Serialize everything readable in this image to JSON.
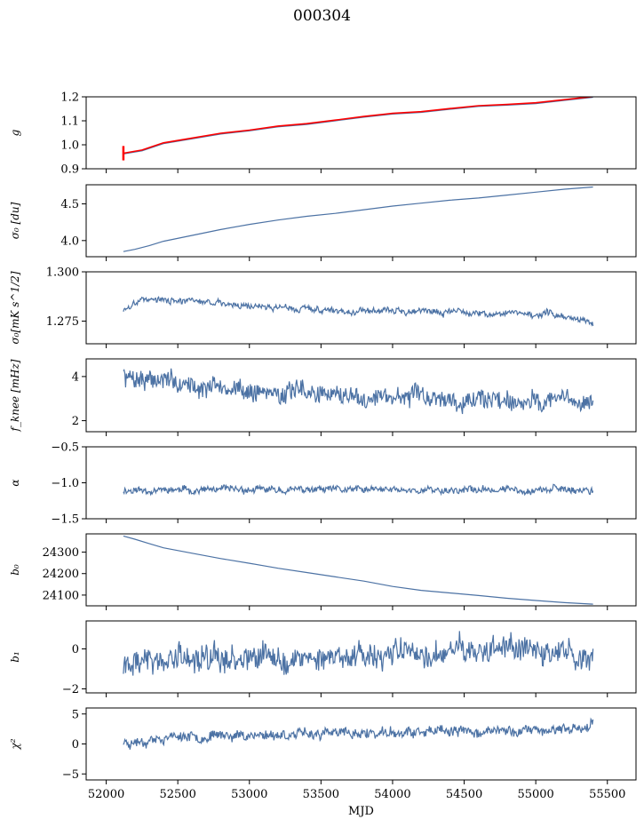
{
  "figure": {
    "title": "000304"
  },
  "colors": {
    "series": "#4c72a4",
    "overlay": "#ff0000",
    "axes": "#000000"
  },
  "chart_data": [
    {
      "type": "line",
      "panel": "g",
      "ylabel": "g",
      "ylim": [
        0.9,
        1.2
      ],
      "xlim": [
        51860,
        55700
      ],
      "yticks": [
        0.9,
        1.0,
        1.1,
        1.2
      ],
      "ytick_labels": [
        "0.9",
        "1.0",
        "1.1",
        "1.2"
      ],
      "series": [
        {
          "color": "#4c72a4",
          "kind": "line",
          "x": [
            52120,
            52250,
            52400,
            52600,
            52800,
            53000,
            53200,
            53400,
            53600,
            53800,
            54000,
            54200,
            54400,
            54600,
            54800,
            55000,
            55200,
            55400
          ],
          "y": [
            0.962,
            0.975,
            1.005,
            1.025,
            1.045,
            1.058,
            1.075,
            1.085,
            1.1,
            1.115,
            1.128,
            1.135,
            1.148,
            1.16,
            1.165,
            1.172,
            1.185,
            1.198
          ]
        },
        {
          "color": "#ff0000",
          "kind": "line",
          "x": [
            52120,
            52250,
            52400,
            52600,
            52800,
            53000,
            53200,
            53400,
            53600,
            53800,
            54000,
            54200,
            54400,
            54600,
            54800,
            55000,
            55200,
            55400
          ],
          "y": [
            0.965,
            0.978,
            1.008,
            1.028,
            1.048,
            1.061,
            1.078,
            1.088,
            1.103,
            1.118,
            1.131,
            1.138,
            1.151,
            1.163,
            1.168,
            1.175,
            1.188,
            1.201
          ]
        }
      ],
      "errorbar": {
        "x": 52120,
        "y": 0.965,
        "ymin": 0.935,
        "ymax": 0.995,
        "color": "#ff0000"
      }
    },
    {
      "type": "line",
      "panel": "sigma0",
      "ylabel": "σ₀ [du]",
      "ylim": [
        3.78,
        4.76
      ],
      "xlim": [
        51860,
        55700
      ],
      "yticks": [
        4.0,
        4.5
      ],
      "ytick_labels": [
        "4.0",
        "4.5"
      ],
      "series": [
        {
          "color": "#4c72a4",
          "kind": "line",
          "x": [
            52120,
            52200,
            52300,
            52400,
            52600,
            52800,
            53000,
            53200,
            53400,
            53600,
            53800,
            54000,
            54200,
            54400,
            54600,
            54800,
            55000,
            55200,
            55400
          ],
          "y": [
            3.85,
            3.88,
            3.93,
            3.99,
            4.07,
            4.15,
            4.22,
            4.28,
            4.33,
            4.37,
            4.42,
            4.47,
            4.51,
            4.55,
            4.58,
            4.62,
            4.66,
            4.7,
            4.73
          ]
        }
      ]
    },
    {
      "type": "line",
      "panel": "sigma0-mK",
      "ylabel": "σ₀[mK s^1/2]",
      "ylim": [
        1.2635,
        1.3
      ],
      "xlim": [
        51860,
        55700
      ],
      "yticks": [
        1.275,
        1.3
      ],
      "ytick_labels": [
        "1.275",
        "1.300"
      ],
      "noise": {
        "seed": 3,
        "amp": 0.0012,
        "walk": 0.0006
      },
      "series": [
        {
          "color": "#4c72a4",
          "kind": "noisy",
          "x": [
            52120,
            52250,
            52400,
            52700,
            53000,
            53300,
            53600,
            53900,
            54200,
            54500,
            54800,
            55100,
            55400
          ],
          "y": [
            1.28,
            1.287,
            1.2855,
            1.2845,
            1.283,
            1.2815,
            1.2805,
            1.2805,
            1.28,
            1.2795,
            1.279,
            1.2785,
            1.2745
          ]
        }
      ]
    },
    {
      "type": "line",
      "panel": "fknee",
      "ylabel": "f_knee [mHz]",
      "ylim": [
        1.5,
        4.8
      ],
      "xlim": [
        51860,
        55700
      ],
      "yticks": [
        2,
        4
      ],
      "ytick_labels": [
        "2",
        "4"
      ],
      "noise": {
        "seed": 7,
        "amp": 0.38,
        "walk": 0.12
      },
      "series": [
        {
          "color": "#4c72a4",
          "kind": "noisy",
          "x": [
            52120,
            52300,
            52600,
            53000,
            53400,
            53800,
            54200,
            54600,
            55000,
            55400
          ],
          "y": [
            4.0,
            3.9,
            3.6,
            3.35,
            3.25,
            3.15,
            3.05,
            3.0,
            2.95,
            2.9
          ]
        }
      ]
    },
    {
      "type": "line",
      "panel": "alpha",
      "ylabel": "α",
      "ylim": [
        -1.5,
        -0.5
      ],
      "xlim": [
        51860,
        55700
      ],
      "yticks": [
        -1.5,
        -1.0,
        -0.5
      ],
      "ytick_labels": [
        "−1.5",
        "−1.0",
        "−0.5"
      ],
      "noise": {
        "seed": 11,
        "amp": 0.04,
        "walk": 0.015
      },
      "series": [
        {
          "color": "#4c72a4",
          "kind": "noisy",
          "x": [
            52120,
            52700,
            53300,
            53900,
            54500,
            55100,
            55400
          ],
          "y": [
            -1.1,
            -1.1,
            -1.1,
            -1.1,
            -1.1,
            -1.09,
            -1.1
          ]
        }
      ]
    },
    {
      "type": "line",
      "panel": "b0",
      "ylabel": "b₀",
      "ylim": [
        24050,
        24385
      ],
      "xlim": [
        51860,
        55700
      ],
      "yticks": [
        24100,
        24200,
        24300
      ],
      "ytick_labels": [
        "24100",
        "24200",
        "24300"
      ],
      "series": [
        {
          "color": "#4c72a4",
          "kind": "line",
          "x": [
            52120,
            52200,
            52300,
            52400,
            52600,
            52800,
            53000,
            53200,
            53400,
            53600,
            53800,
            54000,
            54200,
            54400,
            54600,
            54800,
            55000,
            55200,
            55400
          ],
          "y": [
            24375,
            24360,
            24340,
            24320,
            24295,
            24270,
            24248,
            24225,
            24205,
            24185,
            24165,
            24140,
            24122,
            24110,
            24098,
            24085,
            24075,
            24065,
            24058
          ]
        }
      ]
    },
    {
      "type": "line",
      "panel": "b1",
      "ylabel": "b₁",
      "ylim": [
        -2.2,
        1.4
      ],
      "xlim": [
        51860,
        55700
      ],
      "yticks": [
        -2,
        0
      ],
      "ytick_labels": [
        "−2",
        "0"
      ],
      "noise": {
        "seed": 19,
        "amp": 0.55,
        "walk": 0.2
      },
      "series": [
        {
          "color": "#4c72a4",
          "kind": "noisy",
          "x": [
            52120,
            52700,
            53300,
            53900,
            54500,
            55100,
            55400
          ],
          "y": [
            -0.6,
            -0.5,
            -0.4,
            -0.3,
            -0.2,
            -0.2,
            -0.3
          ]
        }
      ]
    },
    {
      "type": "line",
      "panel": "chi2",
      "ylabel": "χ²",
      "ylim": [
        -6,
        6
      ],
      "xlim": [
        51860,
        55700
      ],
      "yticks": [
        -5,
        0,
        5
      ],
      "ytick_labels": [
        "−5",
        "0",
        "5"
      ],
      "xticks": [
        52000,
        52500,
        53000,
        53500,
        54000,
        54500,
        55000,
        55500
      ],
      "xtick_labels": [
        "52000",
        "52500",
        "53000",
        "53500",
        "54000",
        "54500",
        "55000",
        "55500"
      ],
      "xlabel": "MJD",
      "noise": {
        "seed": 23,
        "amp": 0.7,
        "walk": 0.25
      },
      "series": [
        {
          "color": "#4c72a4",
          "kind": "noisy",
          "x": [
            52120,
            52500,
            53000,
            53500,
            54000,
            54500,
            55000,
            55400
          ],
          "y": [
            0.2,
            1.3,
            1.5,
            1.7,
            1.8,
            2.0,
            2.3,
            2.8
          ]
        }
      ]
    }
  ]
}
